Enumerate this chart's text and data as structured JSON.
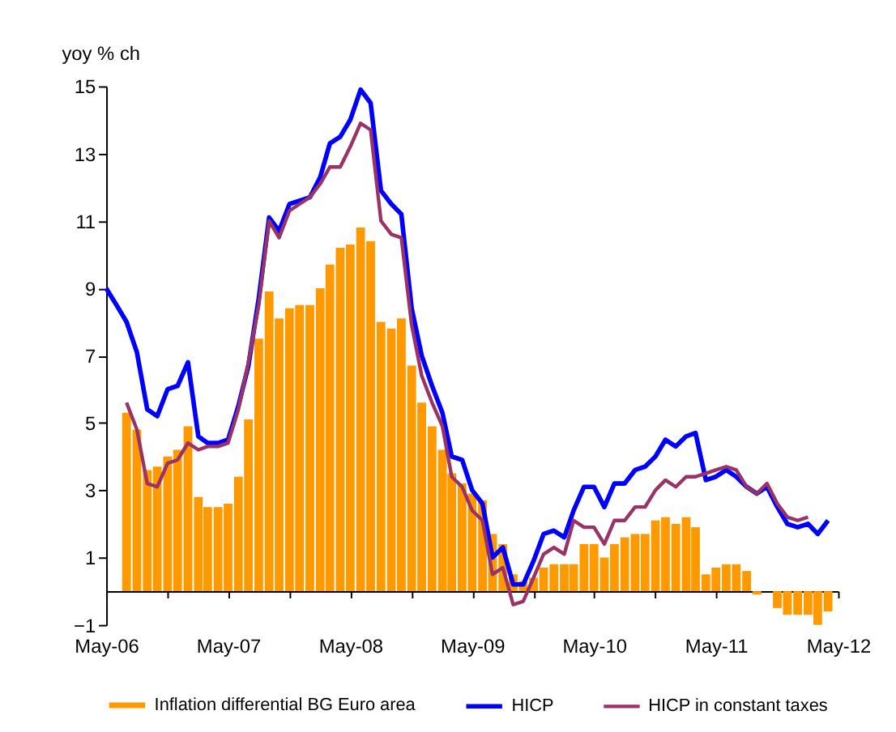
{
  "chart_data": {
    "type": "bar",
    "ylabel": "yoy % ch",
    "x": [
      "2006-05",
      "2006-06",
      "2006-07",
      "2006-08",
      "2006-09",
      "2006-10",
      "2006-11",
      "2006-12",
      "2007-01",
      "2007-02",
      "2007-03",
      "2007-04",
      "2007-05",
      "2007-06",
      "2007-07",
      "2007-08",
      "2007-09",
      "2007-10",
      "2007-11",
      "2007-12",
      "2008-01",
      "2008-02",
      "2008-03",
      "2008-04",
      "2008-05",
      "2008-06",
      "2008-07",
      "2008-08",
      "2008-09",
      "2008-10",
      "2008-11",
      "2008-12",
      "2009-01",
      "2009-02",
      "2009-03",
      "2009-04",
      "2009-05",
      "2009-06",
      "2009-07",
      "2009-08",
      "2009-09",
      "2009-10",
      "2009-11",
      "2009-12",
      "2010-01",
      "2010-02",
      "2010-03",
      "2010-04",
      "2010-05",
      "2010-06",
      "2010-07",
      "2010-08",
      "2010-09",
      "2010-10",
      "2010-11",
      "2010-12",
      "2011-01",
      "2011-02",
      "2011-03",
      "2011-04",
      "2011-05",
      "2011-06",
      "2011-07",
      "2011-08",
      "2011-09",
      "2011-10",
      "2011-11",
      "2011-12",
      "2012-01",
      "2012-02",
      "2012-03",
      "2012-04"
    ],
    "xlim": [
      "2006-05",
      "2012-05"
    ],
    "xticks": [
      {
        "value": "2006-05",
        "label": "May-06"
      },
      {
        "value": "2006-11",
        "label": null
      },
      {
        "value": "2007-05",
        "label": "May-07"
      },
      {
        "value": "2007-11",
        "label": null
      },
      {
        "value": "2008-05",
        "label": "May-08"
      },
      {
        "value": "2008-11",
        "label": null
      },
      {
        "value": "2009-05",
        "label": "May-09"
      },
      {
        "value": "2009-11",
        "label": null
      },
      {
        "value": "2010-05",
        "label": "May-10"
      },
      {
        "value": "2010-11",
        "label": null
      },
      {
        "value": "2011-05",
        "label": "May-11"
      },
      {
        "value": "2011-11",
        "label": null
      },
      {
        "value": "2012-05",
        "label": "May-12"
      }
    ],
    "ylim": [
      -1,
      15
    ],
    "yticks": [
      -1,
      1,
      3,
      5,
      7,
      9,
      11,
      13,
      15
    ],
    "grid": false,
    "legend": "bottom",
    "series": [
      {
        "name": "Inflation differential BG Euro area",
        "color": "#ff9900",
        "values": [
          null,
          null,
          5.3,
          4.8,
          3.6,
          3.7,
          4.0,
          4.2,
          4.9,
          2.8,
          2.5,
          2.5,
          2.6,
          3.4,
          5.1,
          7.5,
          8.9,
          8.1,
          8.4,
          8.5,
          8.5,
          9.0,
          9.7,
          10.2,
          10.3,
          10.8,
          10.4,
          8.0,
          7.8,
          8.1,
          6.7,
          5.6,
          4.9,
          4.2,
          3.5,
          3.2,
          2.9,
          2.7,
          1.7,
          1.4,
          0.5,
          0.3,
          0.4,
          0.7,
          0.8,
          0.8,
          0.8,
          1.4,
          1.4,
          1.0,
          1.4,
          1.6,
          1.7,
          1.7,
          2.1,
          2.2,
          2.0,
          2.2,
          1.9,
          0.5,
          0.7,
          0.8,
          0.8,
          0.6,
          -0.1,
          null,
          -0.5,
          -0.7,
          -0.7,
          -0.7,
          -1.0,
          -0.6
        ]
      },
      {
        "name": "HICP",
        "type": "line",
        "color": "#0000ff",
        "values": [
          9.0,
          8.5,
          8.0,
          7.1,
          5.4,
          5.2,
          6.0,
          6.1,
          6.8,
          4.6,
          4.4,
          4.4,
          4.5,
          5.5,
          6.7,
          8.7,
          11.1,
          10.7,
          11.5,
          11.6,
          11.7,
          12.3,
          13.3,
          13.5,
          14.0,
          14.9,
          14.5,
          11.9,
          11.5,
          11.2,
          8.4,
          7.0,
          6.1,
          5.3,
          4.0,
          3.9,
          3.0,
          2.6,
          1.0,
          1.3,
          0.2,
          0.2,
          0.9,
          1.7,
          1.8,
          1.6,
          2.4,
          3.1,
          3.1,
          2.5,
          3.2,
          3.2,
          3.6,
          3.7,
          4.0,
          4.5,
          4.3,
          4.6,
          4.7,
          3.3,
          3.4,
          3.6,
          3.4,
          3.1,
          2.9,
          3.1,
          2.5,
          2.0,
          1.9,
          2.0,
          1.7,
          2.1
        ]
      },
      {
        "name": "HICP in constant taxes",
        "type": "line",
        "color": "#993366",
        "values": [
          null,
          null,
          5.6,
          4.8,
          3.2,
          3.1,
          3.8,
          3.9,
          4.4,
          4.2,
          4.3,
          4.3,
          4.4,
          5.4,
          6.8,
          8.5,
          11.0,
          10.5,
          11.3,
          11.5,
          11.7,
          12.1,
          12.6,
          12.6,
          13.2,
          13.9,
          13.7,
          11.0,
          10.6,
          10.5,
          7.9,
          6.4,
          5.6,
          4.9,
          3.4,
          3.1,
          2.4,
          2.1,
          0.5,
          0.7,
          -0.4,
          -0.3,
          0.4,
          1.1,
          1.3,
          1.1,
          2.1,
          1.9,
          1.9,
          1.4,
          2.1,
          2.1,
          2.5,
          2.5,
          3.0,
          3.3,
          3.1,
          3.4,
          3.4,
          3.5,
          3.6,
          3.7,
          3.6,
          3.1,
          2.9,
          3.2,
          2.6,
          2.2,
          2.1,
          2.2,
          null,
          null
        ]
      }
    ]
  }
}
